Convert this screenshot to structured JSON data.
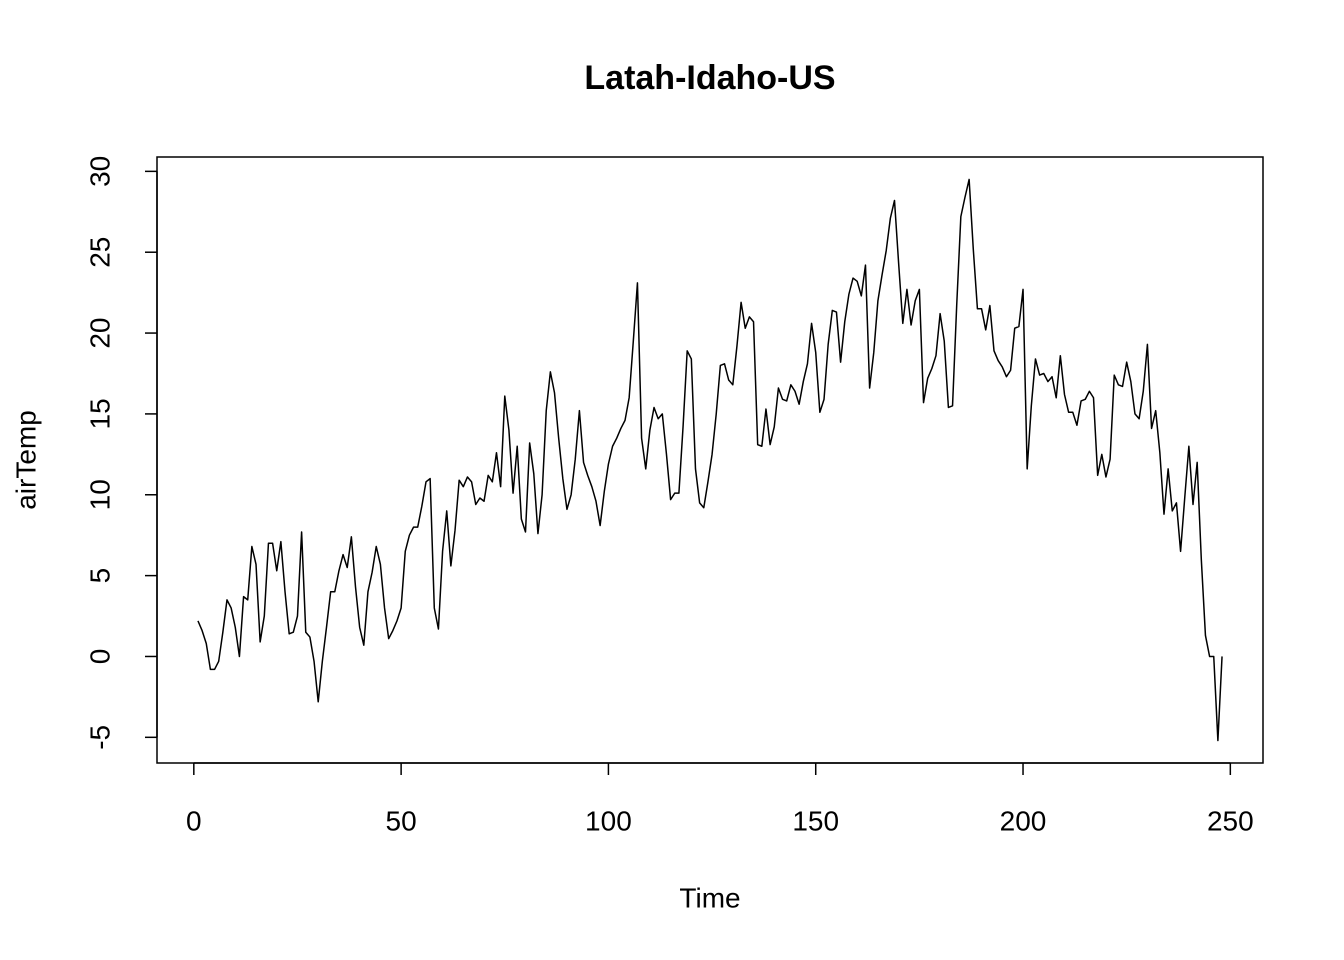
{
  "chart_data": {
    "type": "line",
    "title": "Latah-Idaho-US",
    "x_label": "Time",
    "y_label": "airTemp",
    "x": [
      1,
      2,
      3,
      4,
      5,
      6,
      7,
      8,
      9,
      10,
      11,
      12,
      13,
      14,
      15,
      16,
      17,
      18,
      19,
      20,
      21,
      22,
      23,
      24,
      25,
      26,
      27,
      28,
      29,
      30,
      31,
      32,
      33,
      34,
      35,
      36,
      37,
      38,
      39,
      40,
      41,
      42,
      43,
      44,
      45,
      46,
      47,
      48,
      49,
      50,
      51,
      52,
      53,
      54,
      55,
      56,
      57,
      58,
      59,
      60,
      61,
      62,
      63,
      64,
      65,
      66,
      67,
      68,
      69,
      70,
      71,
      72,
      73,
      74,
      75,
      76,
      77,
      78,
      79,
      80,
      81,
      82,
      83,
      84,
      85,
      86,
      87,
      88,
      89,
      90,
      91,
      92,
      93,
      94,
      95,
      96,
      97,
      98,
      99,
      100,
      101,
      102,
      103,
      104,
      105,
      106,
      107,
      108,
      109,
      110,
      111,
      112,
      113,
      114,
      115,
      116,
      117,
      118,
      119,
      120,
      121,
      122,
      123,
      124,
      125,
      126,
      127,
      128,
      129,
      130,
      131,
      132,
      133,
      134,
      135,
      136,
      137,
      138,
      139,
      140,
      141,
      142,
      143,
      144,
      145,
      146,
      147,
      148,
      149,
      150,
      151,
      152,
      153,
      154,
      155,
      156,
      157,
      158,
      159,
      160,
      161,
      162,
      163,
      164,
      165,
      166,
      167,
      168,
      169,
      170,
      171,
      172,
      173,
      174,
      175,
      176,
      177,
      178,
      179,
      180,
      181,
      182,
      183,
      184,
      185,
      186,
      187,
      188,
      189,
      190,
      191,
      192,
      193,
      194,
      195,
      196,
      197,
      198,
      199,
      200,
      201,
      202,
      203,
      204,
      205,
      206,
      207,
      208,
      209,
      210,
      211,
      212,
      213,
      214,
      215,
      216,
      217,
      218,
      219,
      220,
      221,
      222,
      223,
      224,
      225,
      226,
      227,
      228,
      229,
      230,
      231,
      232,
      233,
      234,
      235,
      236,
      237,
      238,
      239,
      240,
      241,
      242,
      243,
      244,
      245,
      246,
      247,
      248
    ],
    "values": [
      2.2,
      1.6,
      0.8,
      -0.8,
      -0.8,
      -0.3,
      1.5,
      3.5,
      3.0,
      1.8,
      0.0,
      3.7,
      3.5,
      6.8,
      5.7,
      0.9,
      2.5,
      7.0,
      7.0,
      5.3,
      7.1,
      4.0,
      1.4,
      1.5,
      2.5,
      7.7,
      1.5,
      1.2,
      -0.3,
      -2.8,
      -0.3,
      1.8,
      4.0,
      4.0,
      5.3,
      6.3,
      5.5,
      7.4,
      4.3,
      1.8,
      0.7,
      4.0,
      5.2,
      6.8,
      5.7,
      3.0,
      1.1,
      1.6,
      2.2,
      3.0,
      6.5,
      7.5,
      8.0,
      8.0,
      9.3,
      10.8,
      11.0,
      3.0,
      1.7,
      6.5,
      9.0,
      5.6,
      7.8,
      10.9,
      10.5,
      11.1,
      10.8,
      9.4,
      9.8,
      9.6,
      11.2,
      10.8,
      12.6,
      10.5,
      16.1,
      14.0,
      10.1,
      13.0,
      8.5,
      7.7,
      13.2,
      11.3,
      7.6,
      10.0,
      15.2,
      17.6,
      16.3,
      13.5,
      11.0,
      9.1,
      10.0,
      12.2,
      15.2,
      12.0,
      11.2,
      10.5,
      9.6,
      8.1,
      10.2,
      11.9,
      13.0,
      13.5,
      14.1,
      14.6,
      16.0,
      19.5,
      23.1,
      13.5,
      11.6,
      14.0,
      15.4,
      14.7,
      15.0,
      12.5,
      9.7,
      10.1,
      10.1,
      14.2,
      18.9,
      18.4,
      11.6,
      9.5,
      9.2,
      10.8,
      12.5,
      15.0,
      18.0,
      18.1,
      17.1,
      16.8,
      19.2,
      21.9,
      20.3,
      21.0,
      20.7,
      13.1,
      13.0,
      15.3,
      13.1,
      14.2,
      16.6,
      15.9,
      15.8,
      16.8,
      16.4,
      15.6,
      17.0,
      18.1,
      20.6,
      18.8,
      15.1,
      15.9,
      19.3,
      21.4,
      21.3,
      18.2,
      20.7,
      22.4,
      23.4,
      23.2,
      22.3,
      24.2,
      16.6,
      18.8,
      22.0,
      23.6,
      25.1,
      27.1,
      28.2,
      24.3,
      20.6,
      22.7,
      20.5,
      22.0,
      22.7,
      15.7,
      17.2,
      17.8,
      18.6,
      21.2,
      19.5,
      15.4,
      15.5,
      21.7,
      27.2,
      28.4,
      29.5,
      25.2,
      21.5,
      21.5,
      20.2,
      21.7,
      18.9,
      18.3,
      17.9,
      17.3,
      17.7,
      20.3,
      20.4,
      22.7,
      11.6,
      15.5,
      18.4,
      17.4,
      17.5,
      17.0,
      17.3,
      16.0,
      18.6,
      16.2,
      15.1,
      15.1,
      14.3,
      15.8,
      15.9,
      16.4,
      16.0,
      11.2,
      12.5,
      11.1,
      12.2,
      17.4,
      16.8,
      16.7,
      18.2,
      17.0,
      15.0,
      14.7,
      16.4,
      19.3,
      14.1,
      15.2,
      12.6,
      8.8,
      11.6,
      9.0,
      9.5,
      6.5,
      9.8,
      13.0,
      9.4,
      12.0,
      6.0,
      1.3,
      0.0,
      0.0,
      -5.2,
      0.0
    ],
    "color": "#000000",
    "xlim": [
      -8.88,
      257.88
    ],
    "xticks": [
      0,
      50,
      100,
      150,
      200,
      250
    ],
    "ylim": [
      -6.588,
      30.888
    ],
    "yticks": [
      -5,
      0,
      5,
      10,
      15,
      20,
      25,
      30
    ]
  }
}
